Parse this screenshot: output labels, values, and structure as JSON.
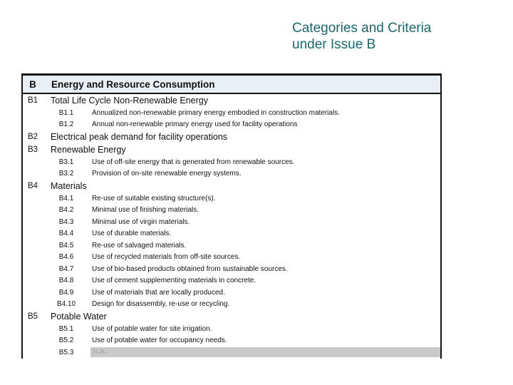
{
  "slide": {
    "title_line1": "Categories and Criteria",
    "title_line2": "under Issue B",
    "title_color": "#17696F"
  },
  "table": {
    "header": {
      "code": "B",
      "label": "Energy and Resource Consumption"
    },
    "header_bg": "#E9EFF5",
    "na_bar_color": "#C9C9C9",
    "rows": [
      {
        "code": "B1",
        "label": "Total Life Cycle Non-Renewable Energy",
        "level": "main"
      },
      {
        "code": "B1.1",
        "label": "Annualized non-renewable primary energy embodied in construction materials.",
        "level": "sub"
      },
      {
        "code": "B1.2",
        "label": "Annual non-renewable primary energy used for facility operations",
        "level": "sub"
      },
      {
        "code": "B2",
        "label": "Electrical peak demand for facility operations",
        "level": "main"
      },
      {
        "code": "B3",
        "label": "Renewable Energy",
        "level": "main"
      },
      {
        "code": "B3.1",
        "label": "Use of off-site energy that is generated from renewable sources.",
        "level": "sub"
      },
      {
        "code": "B3.2",
        "label": "Provision of on-site renewable energy systems.",
        "level": "sub"
      },
      {
        "code": "B4",
        "label": "Materials",
        "level": "main"
      },
      {
        "code": "B4.1",
        "label": "Re-use of suitable existing structure(s).",
        "level": "sub"
      },
      {
        "code": "B4.2",
        "label": "Minimal use of finishing materials.",
        "level": "sub"
      },
      {
        "code": "B4.3",
        "label": "Minimal use of virgin materials.",
        "level": "sub"
      },
      {
        "code": "B4.4",
        "label": "Use of durable materials.",
        "level": "sub"
      },
      {
        "code": "B4.5",
        "label": "Re-use of salvaged materials.",
        "level": "sub"
      },
      {
        "code": "B4.6",
        "label": "Use of recycled materials from off-site sources.",
        "level": "sub"
      },
      {
        "code": "B4.7",
        "label": "Use of bio-based products obtained from sustainable sources.",
        "level": "sub"
      },
      {
        "code": "B4.8",
        "label": "Use of cement supplementing materials in concrete.",
        "level": "sub"
      },
      {
        "code": "B4.9",
        "label": "Use of materials that are locally produced.",
        "level": "sub"
      },
      {
        "code": "B4.10",
        "label": "Design for disassembly, re-use or recycling.",
        "level": "sub"
      },
      {
        "code": "B5",
        "label": "Potable Water",
        "level": "main"
      },
      {
        "code": "B5.1",
        "label": "Use of potable water for site irrigation.",
        "level": "sub"
      },
      {
        "code": "B5.2",
        "label": "Use of potable water for occupancy needs.",
        "level": "sub"
      },
      {
        "code": "B5.3",
        "label": "N.A.",
        "level": "sub",
        "na": true
      }
    ]
  }
}
